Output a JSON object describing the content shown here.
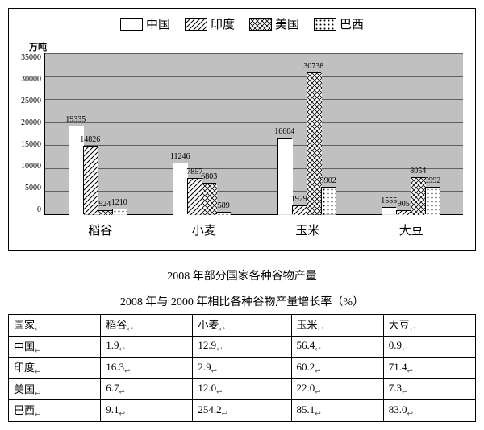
{
  "chart": {
    "type": "bar",
    "legend": [
      {
        "label": "中国",
        "fill": "#ffffff",
        "pattern": "none"
      },
      {
        "label": "印度",
        "fill": "#ffffff",
        "pattern": "diag"
      },
      {
        "label": "美国",
        "fill": "#ffffff",
        "pattern": "cross"
      },
      {
        "label": "巴西",
        "fill": "#ffffff",
        "pattern": "dots"
      }
    ],
    "y_unit": "万吨",
    "y_max": 35000,
    "y_ticks": [
      "35000",
      "30000",
      "25000",
      "20000",
      "15000",
      "10000",
      "5000",
      "0"
    ],
    "grid_color": "#000000",
    "background_color": "#c0c0c0",
    "categories": [
      "稻谷",
      "小麦",
      "玉米",
      "大豆"
    ],
    "series": [
      {
        "name": "中国",
        "values": [
          19335,
          11246,
          16604,
          1555
        ]
      },
      {
        "name": "印度",
        "values": [
          14826,
          7857,
          1929,
          905
        ]
      },
      {
        "name": "美国",
        "values": [
          924,
          6803,
          30738,
          8054
        ]
      },
      {
        "name": "巴西",
        "values": [
          1210,
          589,
          5902,
          5992
        ]
      }
    ]
  },
  "caption": "2008 年部分国家各种谷物产量",
  "table": {
    "title": "2008 年与 2000 年相比各种谷物产量增长率（%）",
    "columns": [
      "国家",
      "稻谷",
      "小麦",
      "玉米",
      "大豆"
    ],
    "rows": [
      [
        "中国",
        "1.9",
        "12.9",
        "56.4",
        "0.9"
      ],
      [
        "印度",
        "16.3",
        "2.9",
        "60.2",
        "71.4"
      ],
      [
        "美国",
        "6.7",
        "12.0",
        "22.0",
        "7.3"
      ],
      [
        "巴西",
        "9.1",
        "254.2",
        "85.1",
        "83.0"
      ]
    ]
  }
}
